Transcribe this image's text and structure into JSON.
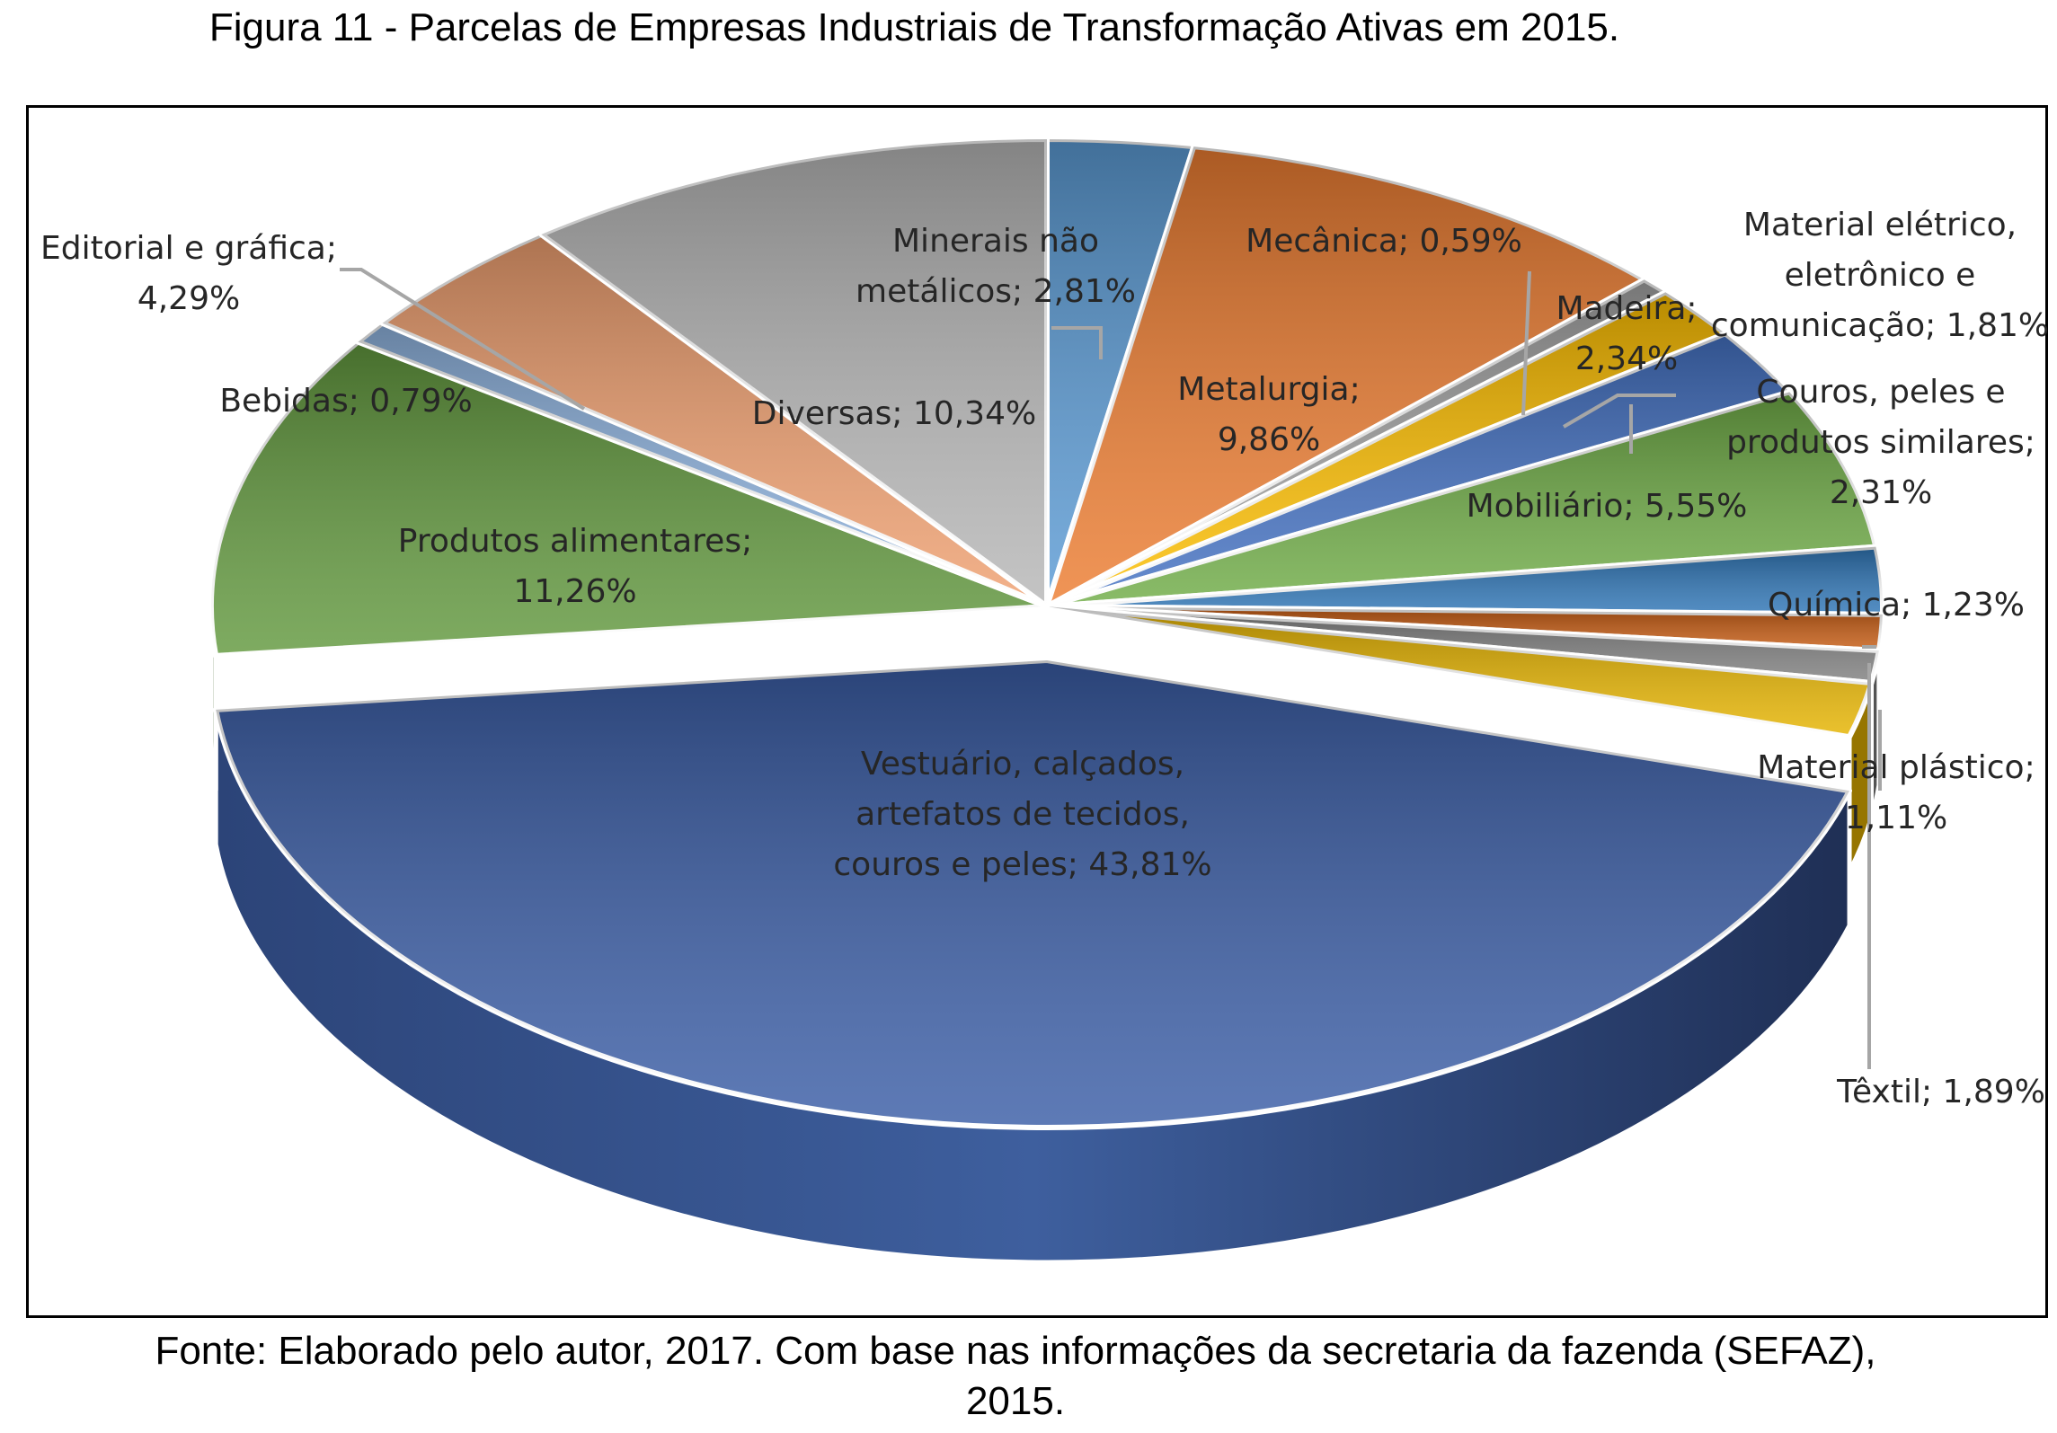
{
  "figure": {
    "title": "Figura 11 - Parcelas de Empresas Industriais de Transformação Ativas em 2015.",
    "source_line1": "Fonte: Elaborado pelo autor, 2017. Com base nas informações da secretaria da fazenda (SEFAZ),",
    "source_line2": "2015."
  },
  "chart_data": {
    "type": "pie",
    "style": "3d-exploded",
    "title": "",
    "unit": "%",
    "slices": [
      {
        "label": "Minerais não metálicos",
        "value": 2.81,
        "text": "2,81%",
        "color": "#5b9bd5"
      },
      {
        "label": "Metalurgia",
        "value": 9.86,
        "text": "9,86%",
        "color": "#ed7d31"
      },
      {
        "label": "Mecânica",
        "value": 0.59,
        "text": "0,59%",
        "color": "#a5a5a5"
      },
      {
        "label": "Material elétrico, eletrônico e comunicação",
        "value": 1.81,
        "text": "1,81%",
        "color": "#ffc000"
      },
      {
        "label": "Madeira",
        "value": 2.34,
        "text": "2,34%",
        "color": "#4472c4"
      },
      {
        "label": "Mobiliário",
        "value": 5.55,
        "text": "5,55%",
        "color": "#70ad47"
      },
      {
        "label": "Couros, peles e produtos similares",
        "value": 2.31,
        "text": "2,31%",
        "color": "#2e75b6"
      },
      {
        "label": "Química",
        "value": 1.23,
        "text": "1,23%",
        "color": "#c55a11"
      },
      {
        "label": "Material plástico",
        "value": 1.11,
        "text": "1,11%",
        "color": "#7f7f7f"
      },
      {
        "label": "Têxtil",
        "value": 1.89,
        "text": "1,89%",
        "color": "#e6b400"
      },
      {
        "label": "Vestuário, calçados, artefatos de tecidos, couros e peles",
        "value": 43.81,
        "text": "43,81%",
        "color": "#3a5da6"
      },
      {
        "label": "Produtos alimentares",
        "value": 11.26,
        "text": "11,26%",
        "color": "#62993e"
      },
      {
        "label": "Bebidas",
        "value": 0.79,
        "text": "0,79%",
        "color": "#8fb4e0"
      },
      {
        "label": "Editorial e gráfica",
        "value": 4.29,
        "text": "4,29%",
        "color": "#f0a070"
      },
      {
        "label": "Diversas",
        "value": 10.34,
        "text": "10,34%",
        "color": "#b7b7b7"
      }
    ],
    "labels": [
      {
        "lines": [
          "Minerais não",
          "metálicos; 2,81%"
        ]
      },
      {
        "lines": [
          "Metalurgia;",
          "9,86%"
        ]
      },
      {
        "lines": [
          "Mecânica; 0,59%"
        ]
      },
      {
        "lines": [
          "Material elétrico,",
          "eletrônico e",
          "comunicação; 1,81%"
        ]
      },
      {
        "lines": [
          "Madeira;",
          "2,34%"
        ]
      },
      {
        "lines": [
          "Mobiliário; 5,55%"
        ]
      },
      {
        "lines": [
          "Couros, peles e",
          "produtos similares;",
          "2,31%"
        ]
      },
      {
        "lines": [
          "Química; 1,23%"
        ]
      },
      {
        "lines": [
          "Material plástico;",
          "1,11%"
        ]
      },
      {
        "lines": [
          "Têxtil; 1,89%"
        ]
      },
      {
        "lines": [
          "Vestuário, calçados,",
          "artefatos de tecidos,",
          "couros e peles; 43,81%"
        ]
      },
      {
        "lines": [
          "Produtos alimentares;",
          "11,26%"
        ]
      },
      {
        "lines": [
          "Bebidas; 0,79%"
        ]
      },
      {
        "lines": [
          "Editorial e gráfica;",
          "4,29%"
        ]
      },
      {
        "lines": [
          "Diversas; 10,34%"
        ]
      }
    ]
  }
}
